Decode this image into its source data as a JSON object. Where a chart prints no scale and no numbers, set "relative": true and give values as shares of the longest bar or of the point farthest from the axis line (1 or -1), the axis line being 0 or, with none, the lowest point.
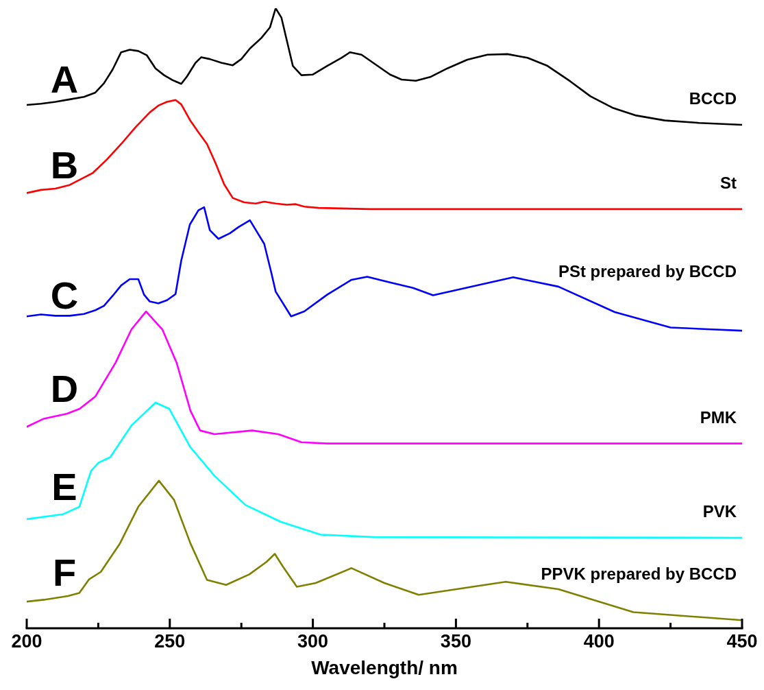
{
  "chart_data": {
    "type": "line",
    "relative": true,
    "xlabel": "Wavelength/ nm",
    "xlim": [
      200,
      450
    ],
    "xticks": [
      200,
      {
        "value": 225,
        "label": null
      },
      250,
      {
        "value": 275,
        "label": null
      },
      300,
      {
        "value": 325,
        "label": null
      },
      350,
      {
        "value": 375,
        "label": null
      },
      400,
      {
        "value": 425,
        "label": null
      },
      450
    ],
    "grid": false,
    "legend": false,
    "marker": "none",
    "line_style": "solid",
    "annotations": [
      "A",
      "B",
      "C",
      "D",
      "E",
      "F"
    ],
    "series": [
      {
        "name": "BCCD",
        "color": "#000000",
        "x": [
          200,
          205,
          210,
          215,
          220,
          224,
          227,
          230,
          233,
          236,
          239,
          242,
          245,
          248,
          251,
          254,
          256,
          259,
          261,
          264,
          268,
          272,
          275,
          278,
          282,
          285,
          287,
          289,
          291,
          293,
          296,
          300,
          305,
          310,
          313,
          317,
          322,
          327,
          331,
          336,
          341,
          347,
          354,
          361,
          368,
          375,
          382,
          390,
          397,
          405,
          413,
          423,
          435,
          450
        ],
        "values": [
          0.844,
          0.846,
          0.849,
          0.853,
          0.857,
          0.864,
          0.879,
          0.901,
          0.929,
          0.933,
          0.931,
          0.924,
          0.903,
          0.892,
          0.884,
          0.878,
          0.89,
          0.912,
          0.921,
          0.918,
          0.912,
          0.908,
          0.918,
          0.935,
          0.952,
          0.969,
          1.0,
          0.985,
          0.946,
          0.907,
          0.892,
          0.893,
          0.907,
          0.92,
          0.929,
          0.925,
          0.909,
          0.893,
          0.885,
          0.883,
          0.889,
          0.903,
          0.917,
          0.925,
          0.926,
          0.92,
          0.907,
          0.882,
          0.858,
          0.839,
          0.827,
          0.819,
          0.815,
          0.812
        ]
      },
      {
        "name": "St",
        "color": "#ff0000",
        "x": [
          200,
          205,
          210,
          215,
          220,
          223,
          228,
          233,
          238,
          243,
          246,
          249,
          252,
          254,
          257,
          260,
          263,
          266,
          269,
          272,
          276,
          280,
          283,
          287,
          291,
          294,
          297,
          302,
          320,
          400,
          450
        ],
        "values": [
          0.702,
          0.707,
          0.709,
          0.715,
          0.727,
          0.734,
          0.756,
          0.781,
          0.808,
          0.832,
          0.843,
          0.849,
          0.852,
          0.845,
          0.82,
          0.8,
          0.781,
          0.75,
          0.716,
          0.694,
          0.687,
          0.685,
          0.688,
          0.685,
          0.683,
          0.684,
          0.68,
          0.678,
          0.676,
          0.676,
          0.676
        ]
      },
      {
        "name": "PSt prepared by BCCD",
        "color": "#0000ff",
        "x": [
          200,
          205,
          210,
          215,
          220,
          224,
          227,
          230,
          233,
          236,
          239,
          241,
          243,
          246,
          249,
          252,
          254,
          257,
          260,
          262,
          264,
          267,
          271,
          274,
          278,
          283,
          285.5,
          287,
          292.4,
          297,
          305,
          313.5,
          319,
          326.7,
          335,
          342,
          370,
          385.8,
          405.5,
          425,
          450
        ],
        "values": [
          0.503,
          0.506,
          0.504,
          0.504,
          0.507,
          0.513,
          0.52,
          0.536,
          0.553,
          0.563,
          0.563,
          0.538,
          0.527,
          0.524,
          0.529,
          0.539,
          0.593,
          0.651,
          0.674,
          0.679,
          0.642,
          0.628,
          0.637,
          0.647,
          0.658,
          0.62,
          0.573,
          0.543,
          0.503,
          0.511,
          0.538,
          0.562,
          0.567,
          0.558,
          0.549,
          0.537,
          0.566,
          0.551,
          0.51,
          0.485,
          0.48
        ]
      },
      {
        "name": "PMK",
        "color": "#ff00ff",
        "x": [
          200,
          206,
          214,
          218.5,
          224,
          231,
          236.6,
          241.7,
          247.4,
          252.4,
          257.2,
          260.6,
          265.6,
          278.8,
          287.9,
          296,
          305,
          450
        ],
        "values": [
          0.325,
          0.338,
          0.346,
          0.354,
          0.374,
          0.428,
          0.482,
          0.511,
          0.482,
          0.428,
          0.351,
          0.319,
          0.313,
          0.319,
          0.313,
          0.3,
          0.298,
          0.298
        ]
      },
      {
        "name": "PVK",
        "color": "#00ffff",
        "x": [
          200,
          212.7,
          218.4,
          222.5,
          225.1,
          229.2,
          236.6,
          245,
          249.8,
          257.2,
          265.6,
          276.4,
          288.6,
          302.7,
          321.6,
          450
        ],
        "values": [
          0.176,
          0.184,
          0.196,
          0.254,
          0.267,
          0.276,
          0.327,
          0.364,
          0.354,
          0.292,
          0.246,
          0.199,
          0.172,
          0.151,
          0.147,
          0.146
        ]
      },
      {
        "name": "PPVK prepared by BCCD",
        "color": "#808000",
        "x": [
          200,
          206,
          214.4,
          218.4,
          221.8,
          225.9,
          232.6,
          239,
          246.2,
          251.5,
          257.2,
          263,
          269.7,
          277.8,
          283.8,
          286.7,
          289.6,
          294.4,
          301,
          313.5,
          325,
          337,
          367.4,
          385.8,
          412,
          450
        ],
        "values": [
          0.043,
          0.046,
          0.052,
          0.057,
          0.079,
          0.091,
          0.137,
          0.196,
          0.238,
          0.207,
          0.137,
          0.078,
          0.07,
          0.087,
          0.107,
          0.12,
          0.099,
          0.067,
          0.073,
          0.097,
          0.073,
          0.054,
          0.075,
          0.063,
          0.026,
          0.013
        ]
      }
    ]
  }
}
